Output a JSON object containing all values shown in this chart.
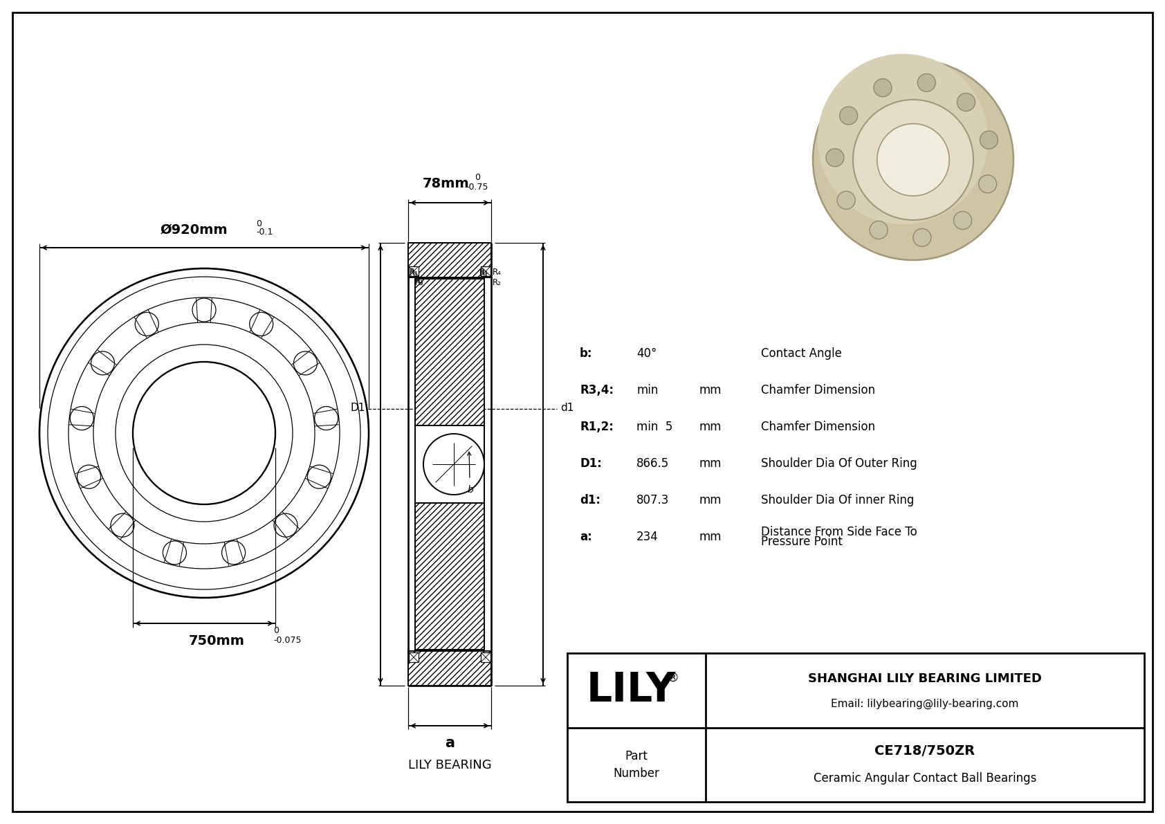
{
  "bg_color": "#ffffff",
  "line_color": "#000000",
  "outer_diameter_label": "Ø920mm",
  "outer_tol_upper": "0",
  "outer_tol_lower": "-0.1",
  "inner_diameter_label": "750mm",
  "inner_tol_upper": "0",
  "inner_tol_lower": "-0.075",
  "width_label": "78mm",
  "width_tol_upper": "0",
  "width_tol_lower": "-0.75",
  "params": [
    {
      "sym": "b:",
      "val": "40°",
      "unit": "",
      "desc": "Contact Angle"
    },
    {
      "sym": "R3,4:",
      "val": "min",
      "unit": "mm",
      "desc": "Chamfer Dimension"
    },
    {
      "sym": "R1,2:",
      "val": "min  5",
      "unit": "mm",
      "desc": "Chamfer Dimension"
    },
    {
      "sym": "D1:",
      "val": "866.5",
      "unit": "mm",
      "desc": "Shoulder Dia Of Outer Ring"
    },
    {
      "sym": "d1:",
      "val": "807.3",
      "unit": "mm",
      "desc": "Shoulder Dia Of inner Ring"
    },
    {
      "sym": "a:",
      "val": "234",
      "unit": "mm",
      "desc": "Distance From Side Face To\nPressure Point"
    }
  ],
  "company": "SHANGHAI LILY BEARING LIMITED",
  "email": "Email: lilybearing@lily-bearing.com",
  "part_number": "CE718/750ZR",
  "part_desc": "Ceramic Angular Contact Ball Bearings",
  "brand": "LILY",
  "lily_bearing_label": "LILY BEARING",
  "dim_label_a": "a",
  "D1_label": "D1",
  "d1_label": "d1"
}
